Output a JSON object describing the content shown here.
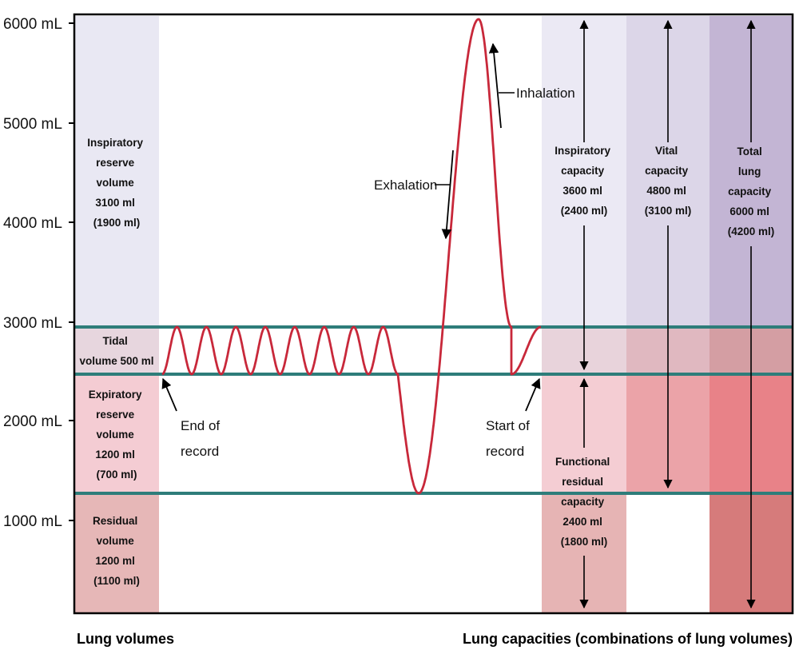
{
  "colors": {
    "curve": "#c8283a",
    "level_line": "#2e7d7a",
    "frame": "#000000",
    "irv": "#e9e8f3",
    "tidal": "#e7d6de",
    "erv": "#f4ccd3",
    "rv": "#e6b7b7",
    "ic_top": "#ebe9f4",
    "ic_tidal": "#e8d3db",
    "frc_erv": "#f4cdd3",
    "frc_rv": "#e6b4b4",
    "vc_top": "#dcd6e8",
    "vc_tidal": "#e0b8c0",
    "vc_erv": "#eba3a8",
    "tlc_top": "#c3b5d4",
    "tlc_tidal": "#d49ea3",
    "tlc_erv": "#e88288",
    "tlc_rv": "#d67b7b"
  },
  "y_axis": {
    "ticks": [
      {
        "value": 6000,
        "label": "6000 mL"
      },
      {
        "value": 5000,
        "label": "5000 mL"
      },
      {
        "value": 4000,
        "label": "4000 mL"
      },
      {
        "value": 3000,
        "label": "3000 mL"
      },
      {
        "value": 2000,
        "label": "2000 mL"
      },
      {
        "value": 1000,
        "label": "1000 mL"
      }
    ]
  },
  "volumes": {
    "irv": [
      "Inspiratory",
      "reserve",
      "volume",
      "3100 ml",
      "(1900 ml)"
    ],
    "tidal": [
      "Tidal",
      "volume 500 ml"
    ],
    "erv": [
      "Expiratory",
      "reserve",
      "volume",
      "1200 ml",
      "(700 ml)"
    ],
    "rv": [
      "Residual",
      "volume",
      "1200 ml",
      "(1100 ml)"
    ]
  },
  "capacities": {
    "ic": [
      "Inspiratory",
      "capacity",
      "3600 ml",
      "(2400 ml)"
    ],
    "vc": [
      "Vital",
      "capacity",
      "4800 ml",
      "(3100 ml)"
    ],
    "tlc": [
      "Total",
      "lung",
      "capacity",
      "6000 ml",
      "(4200 ml)"
    ],
    "frc": [
      "Functional",
      "residual",
      "capacity",
      "2400 ml",
      "(1800 ml)"
    ]
  },
  "annotations": {
    "inhalation": "Inhalation",
    "exhalation": "Exhalation",
    "end_of_record": [
      "End of",
      "record"
    ],
    "start_of_record": [
      "Start of",
      "record"
    ]
  },
  "footer": {
    "left": "Lung volumes",
    "right": "Lung capacities (combinations of lung volumes)"
  }
}
